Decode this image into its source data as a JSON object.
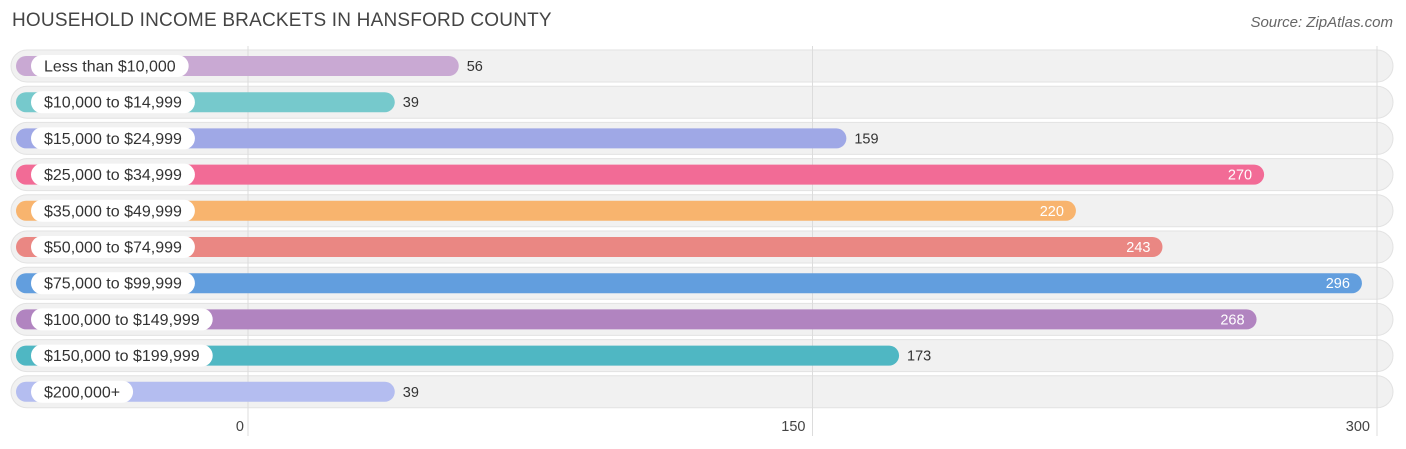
{
  "header": {
    "title": "HOUSEHOLD INCOME BRACKETS IN HANSFORD COUNTY",
    "source": "Source: ZipAtlas.com"
  },
  "chart_data": {
    "type": "bar",
    "orientation": "horizontal",
    "title": "HOUSEHOLD INCOME BRACKETS IN HANSFORD COUNTY",
    "xlabel": "",
    "ylabel": "",
    "xlim": [
      0,
      300
    ],
    "ticks": [
      "0",
      "150",
      "300"
    ],
    "tick_values": [
      0,
      150,
      300
    ],
    "grid": true,
    "categories": [
      "Less than $10,000",
      "$10,000 to $14,999",
      "$15,000 to $24,999",
      "$25,000 to $34,999",
      "$35,000 to $49,999",
      "$50,000 to $74,999",
      "$75,000 to $99,999",
      "$100,000 to $149,999",
      "$150,000 to $199,999",
      "$200,000+"
    ],
    "values": [
      56,
      39,
      159,
      270,
      220,
      243,
      296,
      268,
      173,
      39
    ],
    "colors": [
      "#c9a9d3",
      "#76c9cc",
      "#9fa8e6",
      "#f26b96",
      "#f8b46e",
      "#ea8783",
      "#629ede",
      "#b184c0",
      "#4fb7c3",
      "#b4bdf0"
    ]
  }
}
